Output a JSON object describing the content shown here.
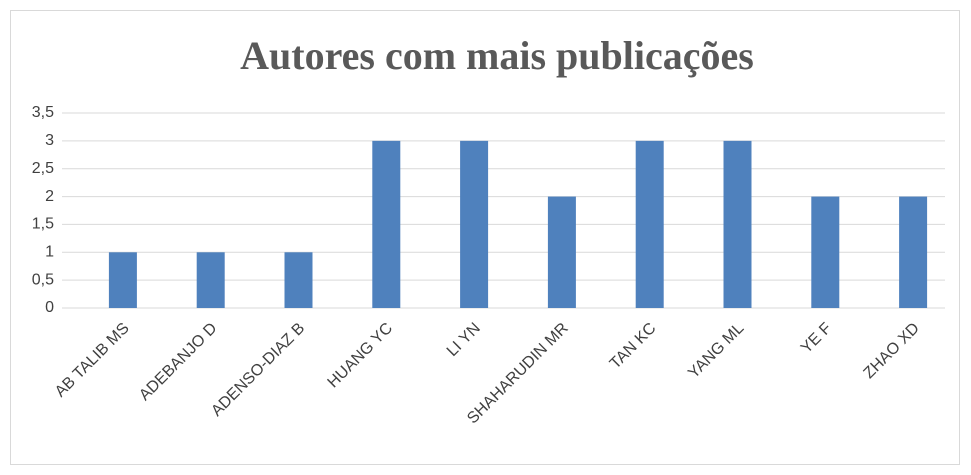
{
  "chart_data": {
    "type": "bar",
    "title": "Autores com mais publicações",
    "categories": [
      "AB TALIB MS",
      "ADEBANJO D",
      "ADENSO-DIAZ B",
      "HUANG YC",
      "LI YN",
      "SHAHARUDIN MR",
      "TAN KC",
      "YANG ML",
      "YE F",
      "ZHAO XD"
    ],
    "values": [
      1,
      1,
      1,
      3,
      3,
      2,
      3,
      3,
      2,
      2
    ],
    "color": "#4f81bd",
    "ylim": [
      0,
      3.5
    ],
    "yticks": [
      0,
      {
        "value": 0.5,
        "label": "0,5"
      },
      1,
      {
        "value": 1.5,
        "label": "1,5"
      },
      2,
      {
        "value": 2.5,
        "label": "2,5"
      },
      3,
      {
        "value": 3.5,
        "label": "3,5"
      }
    ],
    "grid": true
  }
}
